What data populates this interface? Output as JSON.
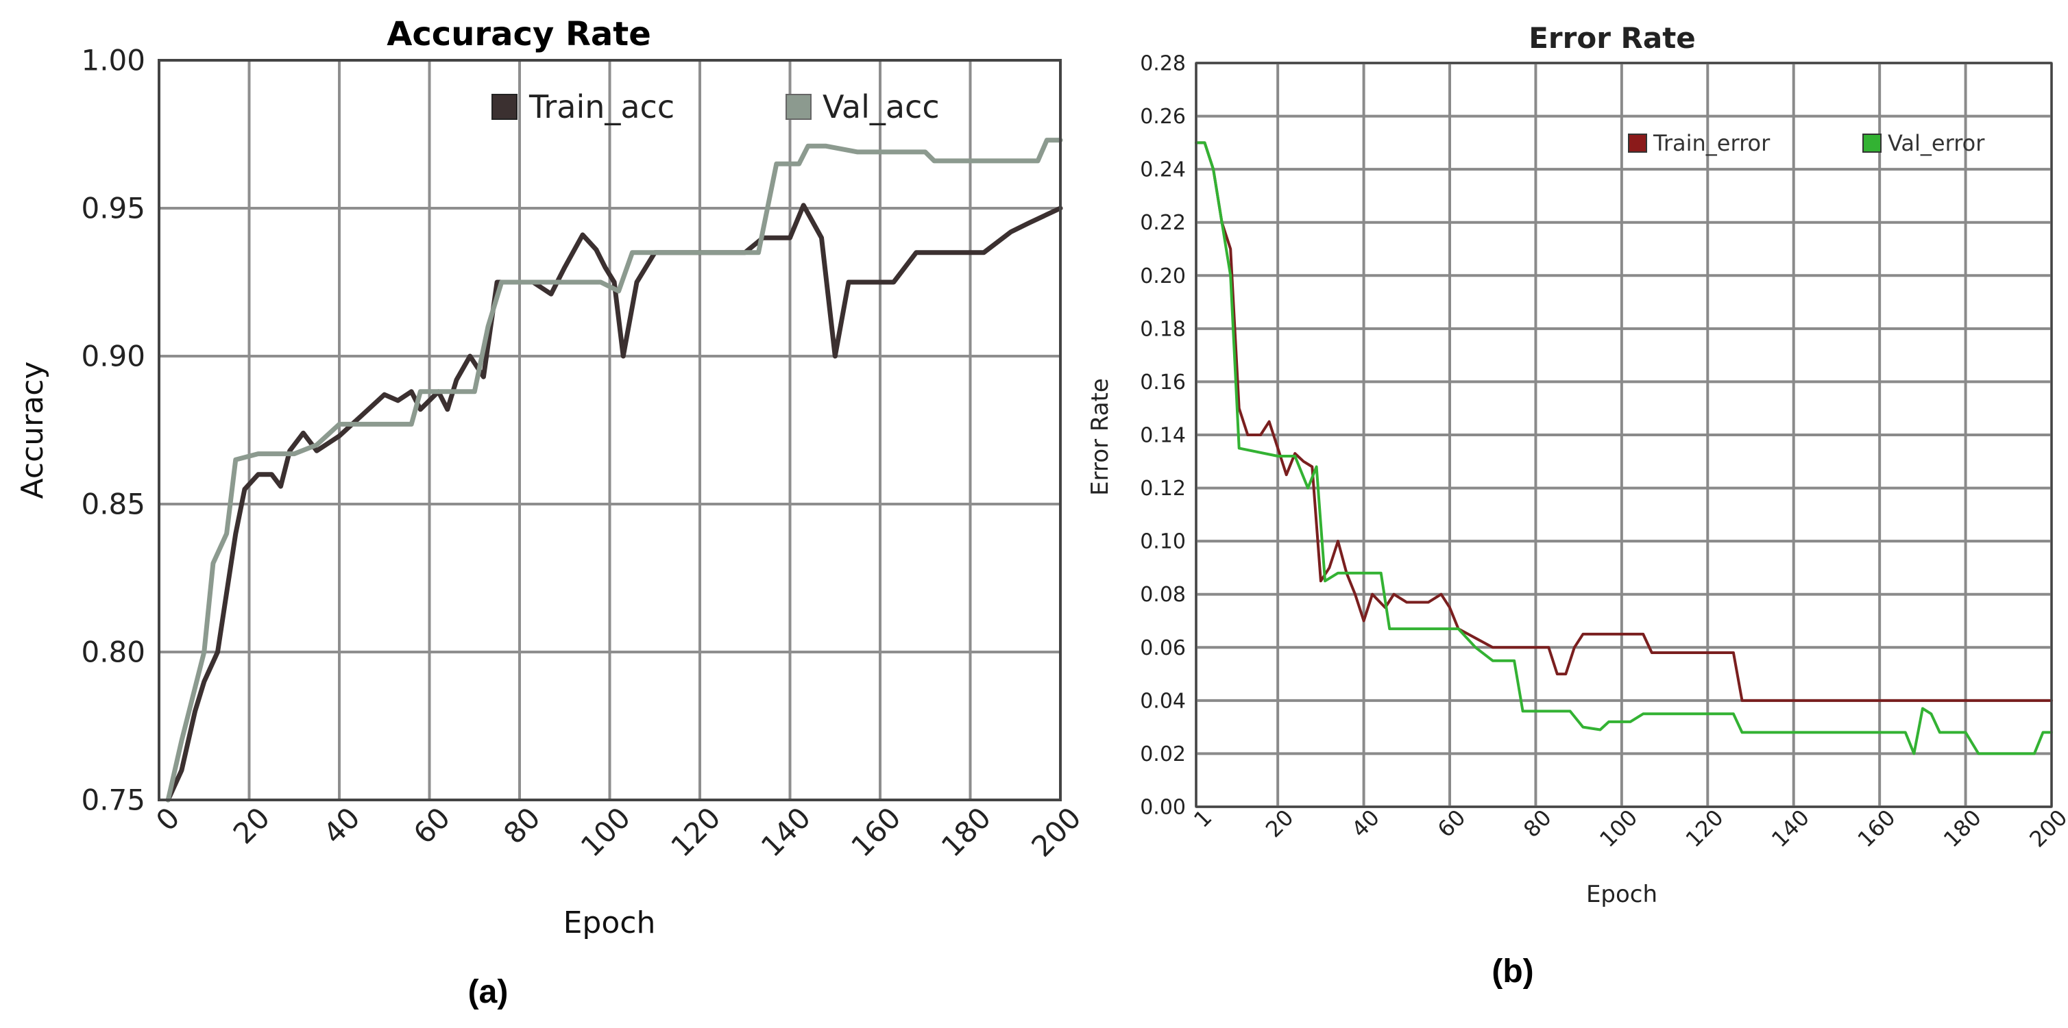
{
  "chart_data": [
    {
      "type": "line",
      "title": "Accuracy Rate",
      "xlabel": "Epoch",
      "ylabel": "Accuracy",
      "caption": "(a)",
      "xlim": [
        0,
        200
      ],
      "ylim": [
        0.75,
        1.0
      ],
      "xticks": [
        "0",
        "20",
        "40",
        "60",
        "80",
        "100",
        "120",
        "140",
        "160",
        "180",
        "200"
      ],
      "yticks": [
        "0.75",
        "0.80",
        "0.85",
        "0.90",
        "0.95",
        "1.00"
      ],
      "grid": true,
      "legend": "top",
      "series": [
        {
          "name": "Train_acc",
          "color": "#3b3030",
          "points": [
            [
              2,
              0.75
            ],
            [
              5,
              0.76
            ],
            [
              8,
              0.78
            ],
            [
              10,
              0.79
            ],
            [
              13,
              0.8
            ],
            [
              15,
              0.82
            ],
            [
              17,
              0.84
            ],
            [
              19,
              0.855
            ],
            [
              22,
              0.86
            ],
            [
              25,
              0.86
            ],
            [
              27,
              0.856
            ],
            [
              29,
              0.868
            ],
            [
              32,
              0.874
            ],
            [
              35,
              0.868
            ],
            [
              40,
              0.873
            ],
            [
              45,
              0.88
            ],
            [
              50,
              0.887
            ],
            [
              53,
              0.885
            ],
            [
              56,
              0.888
            ],
            [
              58,
              0.882
            ],
            [
              62,
              0.888
            ],
            [
              64,
              0.882
            ],
            [
              66,
              0.892
            ],
            [
              69,
              0.9
            ],
            [
              72,
              0.893
            ],
            [
              75,
              0.925
            ],
            [
              80,
              0.925
            ],
            [
              83,
              0.925
            ],
            [
              87,
              0.921
            ],
            [
              90,
              0.93
            ],
            [
              94,
              0.941
            ],
            [
              97,
              0.936
            ],
            [
              99,
              0.93
            ],
            [
              101,
              0.925
            ],
            [
              103,
              0.9
            ],
            [
              106,
              0.925
            ],
            [
              110,
              0.935
            ],
            [
              115,
              0.935
            ],
            [
              130,
              0.935
            ],
            [
              134,
              0.94
            ],
            [
              140,
              0.94
            ],
            [
              143,
              0.951
            ],
            [
              147,
              0.94
            ],
            [
              150,
              0.9
            ],
            [
              153,
              0.925
            ],
            [
              163,
              0.925
            ],
            [
              168,
              0.935
            ],
            [
              183,
              0.935
            ],
            [
              189,
              0.942
            ],
            [
              193,
              0.945
            ],
            [
              200,
              0.95
            ]
          ]
        },
        {
          "name": "Val_acc",
          "color": "#8c9a8f",
          "points": [
            [
              2,
              0.75
            ],
            [
              5,
              0.77
            ],
            [
              10,
              0.8
            ],
            [
              12,
              0.83
            ],
            [
              15,
              0.84
            ],
            [
              17,
              0.865
            ],
            [
              22,
              0.867
            ],
            [
              30,
              0.867
            ],
            [
              35,
              0.87
            ],
            [
              40,
              0.877
            ],
            [
              48,
              0.877
            ],
            [
              56,
              0.877
            ],
            [
              58,
              0.888
            ],
            [
              70,
              0.888
            ],
            [
              73,
              0.91
            ],
            [
              76,
              0.925
            ],
            [
              81,
              0.925
            ],
            [
              83,
              0.925
            ],
            [
              88,
              0.925
            ],
            [
              98,
              0.925
            ],
            [
              102,
              0.922
            ],
            [
              105,
              0.935
            ],
            [
              133,
              0.935
            ],
            [
              137,
              0.965
            ],
            [
              142,
              0.965
            ],
            [
              144,
              0.971
            ],
            [
              148,
              0.971
            ],
            [
              155,
              0.969
            ],
            [
              170,
              0.969
            ],
            [
              172,
              0.966
            ],
            [
              195,
              0.966
            ],
            [
              197,
              0.973
            ],
            [
              200,
              0.973
            ]
          ]
        }
      ]
    },
    {
      "type": "line",
      "title": "Error Rate",
      "xlabel": "Epoch",
      "ylabel": "Error Rate",
      "caption": "(b)",
      "xlim": [
        1,
        200
      ],
      "ylim": [
        0.0,
        0.28
      ],
      "xticks": [
        "1",
        "20",
        "40",
        "60",
        "80",
        "100",
        "120",
        "140",
        "160",
        "180",
        "200"
      ],
      "yticks": [
        "0.00",
        "0.02",
        "0.04",
        "0.06",
        "0.08",
        "0.10",
        "0.12",
        "0.14",
        "0.16",
        "0.18",
        "0.20",
        "0.22",
        "0.24",
        "0.26",
        "0.28"
      ],
      "grid": true,
      "legend": "top-right",
      "series": [
        {
          "name": "Train_error",
          "color": "#7a1f1f",
          "points": [
            [
              1,
              0.25
            ],
            [
              3,
              0.25
            ],
            [
              5,
              0.24
            ],
            [
              7,
              0.22
            ],
            [
              9,
              0.21
            ],
            [
              11,
              0.15
            ],
            [
              13,
              0.14
            ],
            [
              16,
              0.14
            ],
            [
              18,
              0.145
            ],
            [
              20,
              0.135
            ],
            [
              22,
              0.125
            ],
            [
              24,
              0.133
            ],
            [
              26,
              0.13
            ],
            [
              28,
              0.128
            ],
            [
              30,
              0.085
            ],
            [
              32,
              0.09
            ],
            [
              34,
              0.1
            ],
            [
              36,
              0.088
            ],
            [
              38,
              0.08
            ],
            [
              40,
              0.07
            ],
            [
              42,
              0.08
            ],
            [
              45,
              0.075
            ],
            [
              47,
              0.08
            ],
            [
              50,
              0.077
            ],
            [
              55,
              0.077
            ],
            [
              58,
              0.08
            ],
            [
              60,
              0.075
            ],
            [
              62,
              0.067
            ],
            [
              70,
              0.06
            ],
            [
              83,
              0.06
            ],
            [
              85,
              0.05
            ],
            [
              87,
              0.05
            ],
            [
              89,
              0.06
            ],
            [
              91,
              0.065
            ],
            [
              105,
              0.065
            ],
            [
              107,
              0.058
            ],
            [
              126,
              0.058
            ],
            [
              128,
              0.04
            ],
            [
              200,
              0.04
            ]
          ]
        },
        {
          "name": "Val_error",
          "color": "#33b233",
          "points": [
            [
              1,
              0.25
            ],
            [
              3,
              0.25
            ],
            [
              5,
              0.24
            ],
            [
              7,
              0.22
            ],
            [
              9,
              0.2
            ],
            [
              11,
              0.135
            ],
            [
              20,
              0.132
            ],
            [
              24,
              0.132
            ],
            [
              27,
              0.12
            ],
            [
              29,
              0.128
            ],
            [
              31,
              0.085
            ],
            [
              34,
              0.088
            ],
            [
              44,
              0.088
            ],
            [
              46,
              0.067
            ],
            [
              62,
              0.067
            ],
            [
              66,
              0.06
            ],
            [
              70,
              0.055
            ],
            [
              75,
              0.055
            ],
            [
              77,
              0.036
            ],
            [
              88,
              0.036
            ],
            [
              91,
              0.03
            ],
            [
              95,
              0.029
            ],
            [
              97,
              0.032
            ],
            [
              102,
              0.032
            ],
            [
              105,
              0.035
            ],
            [
              126,
              0.035
            ],
            [
              128,
              0.028
            ],
            [
              166,
              0.028
            ],
            [
              168,
              0.02
            ],
            [
              170,
              0.037
            ],
            [
              172,
              0.035
            ],
            [
              174,
              0.028
            ],
            [
              180,
              0.028
            ],
            [
              183,
              0.02
            ],
            [
              196,
              0.02
            ],
            [
              198,
              0.028
            ],
            [
              200,
              0.028
            ]
          ]
        }
      ]
    }
  ]
}
